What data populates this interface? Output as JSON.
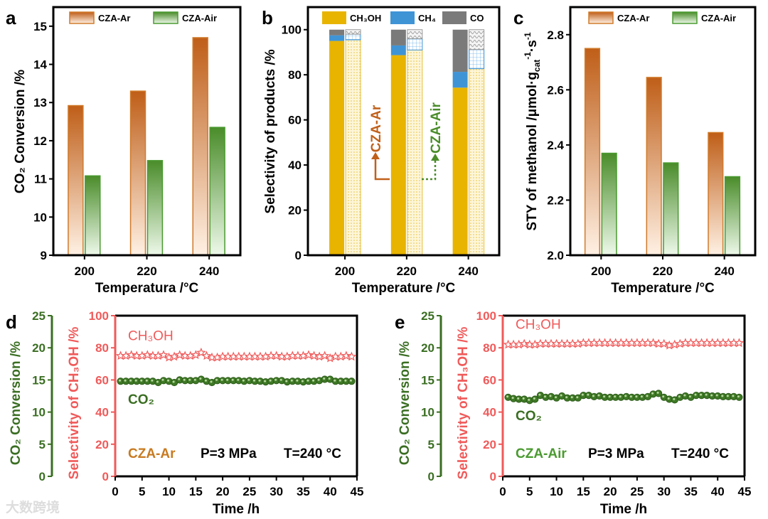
{
  "panel_letters": [
    "a",
    "b",
    "c",
    "d",
    "e"
  ],
  "colors": {
    "ar": "#c0601a",
    "ar_light": "#fdeee0",
    "air": "#4a8c2a",
    "air_light": "#eaf7e6",
    "ch3oh": "#e8b400",
    "ch4": "#3f94d6",
    "co": "#7a7a7a",
    "red": "#f05a5a",
    "green": "#3a6e22"
  },
  "watermark": "大数跨境",
  "chart_data": [
    {
      "type": "bar",
      "title": "",
      "xlabel": "Temperatura /°C",
      "ylabel": "CO₂ Conversion /%",
      "categories": [
        "200",
        "220",
        "240"
      ],
      "series": [
        {
          "name": "CZA-Ar",
          "values": [
            12.92,
            13.3,
            14.7
          ]
        },
        {
          "name": "CZA-Air",
          "values": [
            11.08,
            11.48,
            12.35
          ]
        }
      ],
      "ylim": [
        9,
        15.5
      ],
      "yticks": [
        "9",
        "10",
        "11",
        "12",
        "13",
        "14",
        "15"
      ],
      "legend": "top"
    },
    {
      "type": "bar",
      "stacked": true,
      "xlabel": "Temperature /°C",
      "ylabel": "Selectivity of products /%",
      "categories": [
        "200",
        "220",
        "240"
      ],
      "components": [
        "CH₃OH",
        "CH₄",
        "CO"
      ],
      "series": [
        {
          "name": "CZA-Ar",
          "CH3OH": [
            95,
            88.7,
            74.3
          ],
          "CH4": [
            2.5,
            4.3,
            7
          ],
          "CO": [
            2.5,
            7,
            18.7
          ]
        },
        {
          "name": "CZA-Air",
          "CH3OH": [
            95.5,
            91,
            82.7
          ],
          "CH4": [
            2.5,
            5,
            8.5
          ],
          "CO": [
            2,
            4,
            8.8
          ]
        }
      ],
      "annotations": [
        "CZA-Ar",
        "CZA-Air"
      ],
      "ylim": [
        0,
        110
      ],
      "yticks": [
        "0",
        "20",
        "40",
        "60",
        "80",
        "100"
      ],
      "legend": "top"
    },
    {
      "type": "bar",
      "xlabel": "Temperature /°C",
      "ylabel_parts": [
        "STY of methanol /μmol·g",
        "cat",
        "-1",
        "·s",
        "-1"
      ],
      "categories": [
        "200",
        "220",
        "240"
      ],
      "series": [
        {
          "name": "CZA-Ar",
          "values": [
            2.75,
            2.645,
            2.445
          ]
        },
        {
          "name": "CZA-Air",
          "values": [
            2.37,
            2.335,
            2.285
          ]
        }
      ],
      "ylim": [
        2.0,
        2.9
      ],
      "yticks": [
        "2.0",
        "2.2",
        "2.4",
        "2.6",
        "2.8"
      ],
      "legend": "top"
    },
    {
      "type": "scatter",
      "xlabel": "Time /h",
      "ylabel_left": "CO₂ Conversion /%",
      "ylabel_right": "Selectivity of CH₃OH /%",
      "xlim": [
        0,
        45
      ],
      "xticks": [
        "0",
        "5",
        "10",
        "15",
        "20",
        "25",
        "30",
        "35",
        "40",
        "45"
      ],
      "y_co2_lim": [
        0,
        25
      ],
      "y_co2_ticks": [
        "0",
        "5",
        "10",
        "15",
        "20",
        "25"
      ],
      "y_sel_lim": [
        0,
        100
      ],
      "y_sel_ticks": [
        "0",
        "20",
        "40",
        "60",
        "80",
        "100"
      ],
      "labels": {
        "ch3oh": "CH₃OH",
        "co2": "CO₂",
        "catalyst": "CZA-Ar",
        "pressure": "P=3 MPa",
        "temp": "T=240 °C"
      },
      "time": [
        1,
        2,
        3,
        4,
        5,
        6,
        7,
        8,
        9,
        10,
        11,
        12,
        13,
        14,
        15,
        16,
        17,
        18,
        19,
        20,
        21,
        22,
        23,
        24,
        25,
        26,
        27,
        28,
        29,
        30,
        31,
        32,
        33,
        34,
        35,
        36,
        37,
        38,
        39,
        40,
        41,
        42,
        43,
        44
      ],
      "ch3oh_selectivity": [
        75,
        75,
        75.5,
        75,
        75,
        75.5,
        75,
        75,
        75.5,
        74,
        74.5,
        75.5,
        75,
        75,
        75.5,
        77,
        75,
        74,
        74,
        74.5,
        74.5,
        74.5,
        74.5,
        74.5,
        74.5,
        74.5,
        74.5,
        74.5,
        75,
        75,
        74.5,
        74.5,
        75,
        75,
        75,
        75.5,
        75,
        74.5,
        75,
        73.5,
        74.5,
        74.5,
        75,
        74.5
      ],
      "co2_conversion": [
        14.8,
        14.8,
        14.8,
        14.8,
        14.8,
        14.8,
        14.8,
        14.6,
        14.9,
        14.8,
        14.6,
        15,
        14.9,
        14.9,
        14.9,
        15.1,
        14.8,
        14.6,
        14.9,
        14.9,
        14.9,
        14.9,
        14.9,
        14.8,
        14.9,
        14.8,
        14.8,
        14.7,
        14.8,
        14.9,
        14.9,
        14.7,
        14.8,
        14.8,
        14.7,
        14.8,
        14.8,
        14.9,
        15.1,
        15.1,
        14.8,
        14.8,
        14.8,
        14.8
      ]
    },
    {
      "type": "scatter",
      "xlabel": "Time /h",
      "ylabel_left": "CO₂ Conversion /%",
      "ylabel_right": "Selectivity of CH₃OH /%",
      "xlim": [
        0,
        45
      ],
      "xticks": [
        "0",
        "5",
        "10",
        "15",
        "20",
        "25",
        "30",
        "35",
        "40",
        "45"
      ],
      "y_co2_lim": [
        0,
        25
      ],
      "y_co2_ticks": [
        "0",
        "5",
        "10",
        "15",
        "20",
        "25"
      ],
      "y_sel_lim": [
        0,
        100
      ],
      "y_sel_ticks": [
        "0",
        "20",
        "40",
        "60",
        "80",
        "100"
      ],
      "labels": {
        "ch3oh": "CH₃OH",
        "co2": "CO₂",
        "catalyst": "CZA-Air",
        "pressure": "P=3 MPa",
        "temp": "T=240 °C"
      },
      "time": [
        1,
        2,
        3,
        4,
        5,
        6,
        7,
        8,
        9,
        10,
        11,
        12,
        13,
        14,
        15,
        16,
        17,
        18,
        19,
        20,
        21,
        22,
        23,
        24,
        25,
        26,
        27,
        28,
        29,
        30,
        31,
        32,
        33,
        34,
        35,
        36,
        37,
        38,
        39,
        40,
        41,
        42,
        43,
        44
      ],
      "ch3oh_selectivity": [
        82,
        82,
        82,
        82.5,
        82,
        82,
        82.5,
        82.5,
        82.5,
        82.5,
        82.5,
        82.5,
        82.5,
        82.5,
        83,
        83,
        83,
        83,
        83,
        83,
        83,
        83,
        83,
        83,
        83,
        83,
        83,
        83,
        82.5,
        82.5,
        81.5,
        82,
        82.5,
        83,
        83,
        83,
        83,
        83,
        83,
        83,
        83,
        83,
        83,
        83
      ],
      "co2_conversion": [
        12.3,
        12.1,
        12,
        12,
        11.8,
        12,
        12.6,
        12.3,
        12.4,
        12.2,
        12.5,
        12.2,
        12.2,
        12.2,
        12.6,
        12.6,
        12.4,
        12.5,
        12.3,
        12.3,
        12.3,
        12.3,
        12.4,
        12.3,
        12.3,
        12.3,
        12.4,
        12.8,
        12.9,
        12.3,
        12,
        11.9,
        12.3,
        12.5,
        12.3,
        12.6,
        12.6,
        12.6,
        12.5,
        12.5,
        12.4,
        12.4,
        12.4,
        12.3
      ]
    }
  ]
}
